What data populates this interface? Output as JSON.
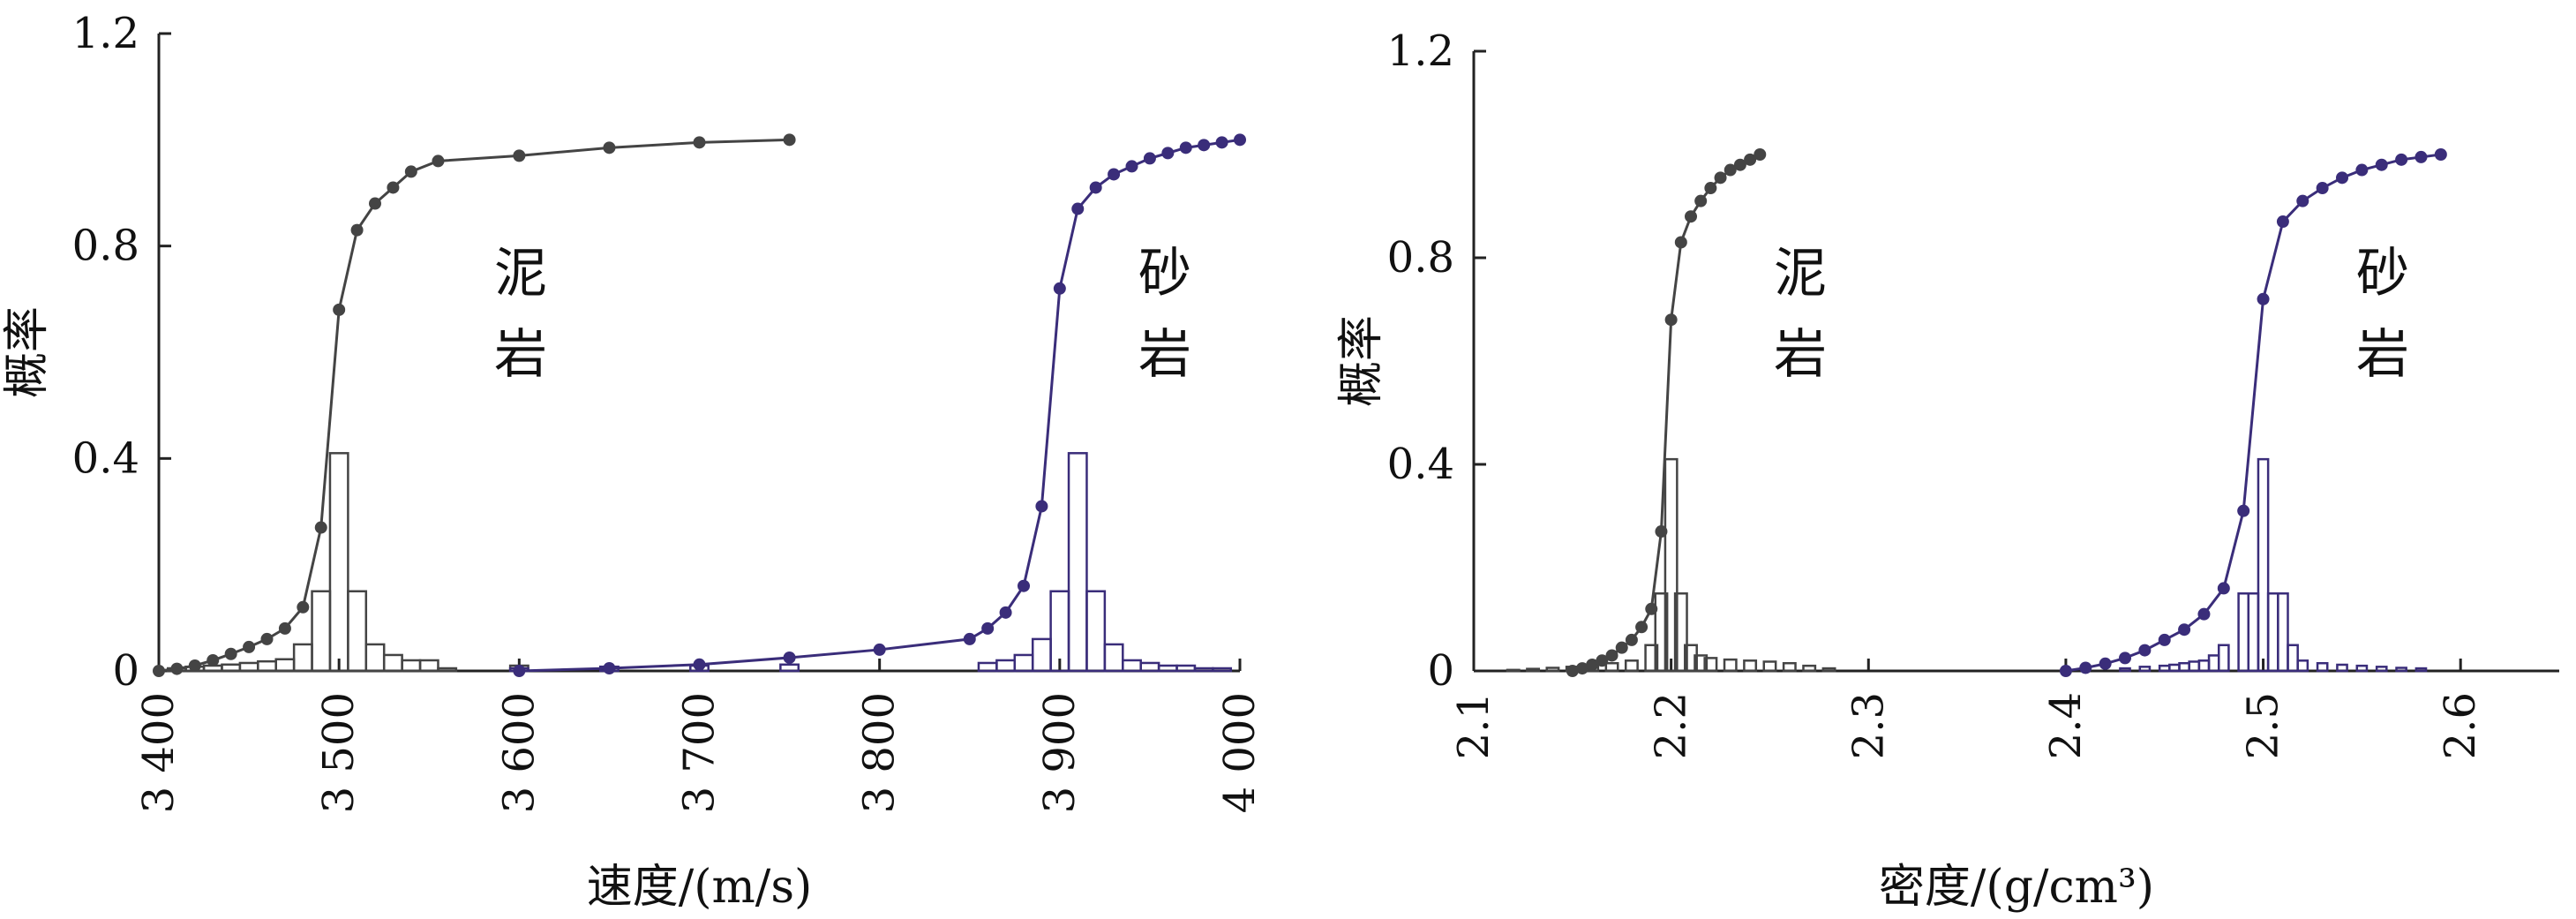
{
  "chart_data": [
    {
      "type": "histogram+cdf",
      "title": "",
      "xlabel": "速度/(m/s)",
      "ylabel": "概率",
      "xlim": [
        3400,
        4000
      ],
      "ylim": [
        0,
        1.2
      ],
      "xticks": [
        3400,
        3500,
        3600,
        3700,
        3800,
        3900,
        4000
      ],
      "xtick_labels": [
        "3 400",
        "3 500",
        "3 600",
        "3 700",
        "3 800",
        "3 900",
        "4 000"
      ],
      "yticks": [
        0,
        0.4,
        0.8,
        1.2
      ],
      "ytick_labels": [
        "0",
        "0.4",
        "0.8",
        "1.2"
      ],
      "grid": false,
      "legend": "none",
      "annotations": [
        {
          "lines": [
            "泥",
            "岩"
          ],
          "x": 3510,
          "y": 0.8
        },
        {
          "lines": [
            "砂",
            "岩"
          ],
          "x": 3860,
          "y": 0.8
        }
      ],
      "series": [
        {
          "lithology": "泥岩",
          "color": "#444444",
          "hist_bin_width": 10,
          "hist_x": [
            3410,
            3420,
            3430,
            3440,
            3450,
            3460,
            3470,
            3480,
            3490,
            3500,
            3510,
            3520,
            3530,
            3540,
            3550,
            3560,
            3600
          ],
          "hist_y": [
            0.005,
            0.008,
            0.01,
            0.012,
            0.015,
            0.018,
            0.022,
            0.05,
            0.15,
            0.41,
            0.15,
            0.05,
            0.03,
            0.02,
            0.02,
            0.005,
            0.01
          ],
          "cdf_x": [
            3400,
            3410,
            3420,
            3430,
            3440,
            3450,
            3460,
            3470,
            3480,
            3490,
            3500,
            3510,
            3520,
            3530,
            3540,
            3555,
            3600,
            3650,
            3700,
            3750
          ],
          "cdf_y": [
            0.0,
            0.004,
            0.01,
            0.02,
            0.032,
            0.045,
            0.06,
            0.08,
            0.12,
            0.27,
            0.68,
            0.83,
            0.88,
            0.91,
            0.94,
            0.96,
            0.97,
            0.985,
            0.995,
            1.0
          ]
        },
        {
          "lithology": "砂岩",
          "color": "#3a2d7a",
          "hist_bin_width": 10,
          "hist_x": [
            3860,
            3870,
            3880,
            3890,
            3900,
            3910,
            3920,
            3930,
            3940,
            3950,
            3960,
            3970,
            3980,
            3990,
            3600,
            3650,
            3700,
            3750
          ],
          "hist_y": [
            0.015,
            0.02,
            0.03,
            0.06,
            0.15,
            0.41,
            0.15,
            0.05,
            0.02,
            0.015,
            0.01,
            0.01,
            0.005,
            0.005,
            0.005,
            0.008,
            0.01,
            0.012
          ],
          "cdf_x": [
            3600,
            3650,
            3700,
            3750,
            3800,
            3850,
            3860,
            3870,
            3880,
            3890,
            3900,
            3910,
            3920,
            3930,
            3940,
            3950,
            3960,
            3970,
            3980,
            3990,
            4000
          ],
          "cdf_y": [
            0.0,
            0.005,
            0.012,
            0.025,
            0.04,
            0.06,
            0.08,
            0.11,
            0.16,
            0.31,
            0.72,
            0.87,
            0.91,
            0.935,
            0.95,
            0.965,
            0.975,
            0.985,
            0.99,
            0.995,
            1.0
          ]
        }
      ]
    },
    {
      "type": "histogram+cdf",
      "title": "",
      "xlabel": "密度/(g/cm³)",
      "ylabel": "概率",
      "xlim": [
        2.1,
        2.65
      ],
      "ylim": [
        0,
        1.2
      ],
      "xticks": [
        2.1,
        2.2,
        2.3,
        2.4,
        2.5,
        2.6
      ],
      "xtick_labels": [
        "2.1",
        "2.2",
        "2.3",
        "2.4",
        "2.5",
        "2.6"
      ],
      "yticks": [
        0,
        0.4,
        0.8,
        1.2
      ],
      "ytick_labels": [
        "0",
        "0.4",
        "0.8",
        "1.2"
      ],
      "grid": false,
      "legend": "none",
      "annotations": [
        {
          "lines": [
            "泥",
            "岩"
          ],
          "x": 2.255,
          "y": 0.8
        },
        {
          "lines": [
            "砂",
            "岩"
          ],
          "x": 2.585,
          "y": 0.8
        }
      ],
      "series": [
        {
          "lithology": "泥岩",
          "color": "#444444",
          "hist_bin_width": 0.006,
          "hist_x": [
            2.12,
            2.13,
            2.14,
            2.15,
            2.16,
            2.17,
            2.18,
            2.19,
            2.195,
            2.2,
            2.205,
            2.21,
            2.215,
            2.22,
            2.23,
            2.24,
            2.25,
            2.26,
            2.27,
            2.28
          ],
          "hist_y": [
            0.002,
            0.004,
            0.006,
            0.008,
            0.01,
            0.015,
            0.02,
            0.05,
            0.15,
            0.41,
            0.15,
            0.05,
            0.03,
            0.025,
            0.022,
            0.02,
            0.018,
            0.015,
            0.01,
            0.005
          ],
          "cdf_x": [
            2.15,
            2.155,
            2.16,
            2.165,
            2.17,
            2.175,
            2.18,
            2.185,
            2.19,
            2.195,
            2.2,
            2.205,
            2.21,
            2.215,
            2.22,
            2.225,
            2.23,
            2.235,
            2.24,
            2.245
          ],
          "cdf_y": [
            0.0,
            0.005,
            0.012,
            0.02,
            0.03,
            0.045,
            0.06,
            0.085,
            0.12,
            0.27,
            0.68,
            0.83,
            0.88,
            0.91,
            0.935,
            0.955,
            0.97,
            0.98,
            0.99,
            1.0
          ]
        },
        {
          "lithology": "砂岩",
          "color": "#3a2d7a",
          "hist_bin_width": 0.005,
          "hist_x": [
            2.43,
            2.44,
            2.45,
            2.455,
            2.46,
            2.465,
            2.47,
            2.475,
            2.48,
            2.49,
            2.495,
            2.5,
            2.505,
            2.51,
            2.515,
            2.52,
            2.53,
            2.54,
            2.55,
            2.56,
            2.57,
            2.58
          ],
          "hist_y": [
            0.005,
            0.008,
            0.01,
            0.012,
            0.015,
            0.018,
            0.02,
            0.03,
            0.05,
            0.15,
            0.15,
            0.41,
            0.15,
            0.15,
            0.05,
            0.02,
            0.015,
            0.012,
            0.01,
            0.008,
            0.006,
            0.005
          ],
          "cdf_x": [
            2.4,
            2.41,
            2.42,
            2.43,
            2.44,
            2.45,
            2.46,
            2.47,
            2.48,
            2.49,
            2.5,
            2.51,
            2.52,
            2.53,
            2.54,
            2.55,
            2.56,
            2.57,
            2.58,
            2.59
          ],
          "cdf_y": [
            0.0,
            0.006,
            0.014,
            0.025,
            0.04,
            0.06,
            0.08,
            0.11,
            0.16,
            0.31,
            0.72,
            0.87,
            0.91,
            0.935,
            0.955,
            0.97,
            0.98,
            0.99,
            0.995,
            1.0
          ]
        }
      ]
    }
  ]
}
